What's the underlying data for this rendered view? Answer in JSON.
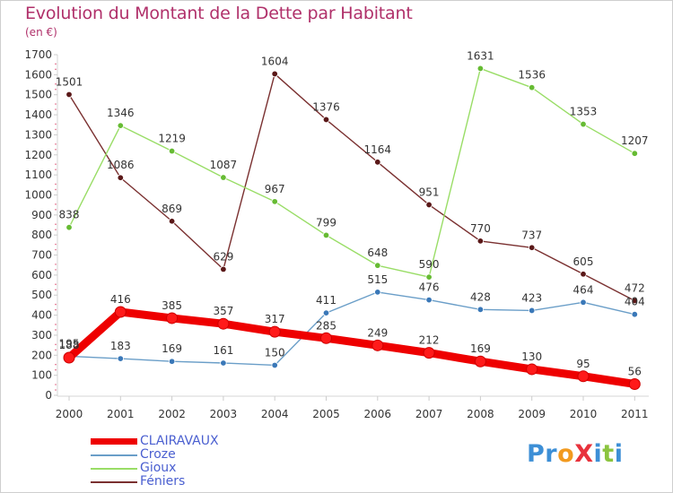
{
  "title": "Evolution du Montant de la Dette par Habitant",
  "unit": "(en €)",
  "logo": {
    "text": "ProXiti",
    "letters": [
      {
        "ch": "P",
        "color": "#3d8fd6"
      },
      {
        "ch": "r",
        "color": "#3d8fd6"
      },
      {
        "ch": "o",
        "color": "#f29a1f"
      },
      {
        "ch": "X",
        "color": "#e8323c"
      },
      {
        "ch": "i",
        "color": "#3d8fd6"
      },
      {
        "ch": "t",
        "color": "#8bc43f"
      },
      {
        "ch": "i",
        "color": "#3d8fd6"
      }
    ]
  },
  "chart_data": {
    "type": "line",
    "title": "Evolution du Montant de la Dette par Habitant",
    "ylabel": "(en €)",
    "xlabel": "",
    "ylim": [
      0,
      1700
    ],
    "ytick_step": 100,
    "grid": false,
    "legend_position": "bottom-left",
    "categories": [
      "2000",
      "2001",
      "2002",
      "2003",
      "2004",
      "2005",
      "2006",
      "2007",
      "2008",
      "2009",
      "2010",
      "2011"
    ],
    "series": [
      {
        "name": "CLAIRAVAUX",
        "color": "#ee0000",
        "values": [
          188,
          416,
          385,
          357,
          317,
          285,
          249,
          212,
          169,
          130,
          95,
          56
        ]
      },
      {
        "name": "Croze",
        "color": "#6a9ec8",
        "values": [
          195,
          183,
          169,
          161,
          150,
          411,
          515,
          476,
          428,
          423,
          464,
          404
        ]
      },
      {
        "name": "Gioux",
        "color": "#99dd66",
        "values": [
          838,
          1346,
          1219,
          1087,
          967,
          799,
          648,
          590,
          1631,
          1536,
          1353,
          1207
        ]
      },
      {
        "name": "Féniers",
        "color": "#7a3030",
        "values": [
          1501,
          1086,
          869,
          629,
          1604,
          1376,
          1164,
          951,
          770,
          737,
          605,
          472
        ]
      }
    ]
  }
}
